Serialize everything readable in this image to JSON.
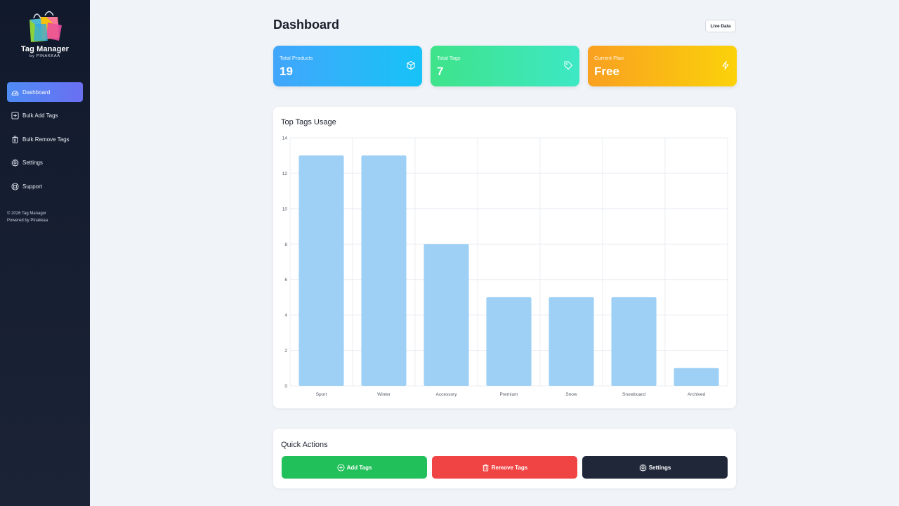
{
  "app": {
    "brand_name": "Tag Manager",
    "brand_by": "by PINAKKAA"
  },
  "sidebar": {
    "items": [
      {
        "label": "Dashboard",
        "icon": "dashboard-icon",
        "active": true
      },
      {
        "label": "Bulk Add Tags",
        "icon": "plus-square-icon",
        "active": false
      },
      {
        "label": "Bulk Remove Tags",
        "icon": "trash-icon",
        "active": false
      },
      {
        "label": "Settings",
        "icon": "gear-icon",
        "active": false
      },
      {
        "label": "Support",
        "icon": "lifebuoy-icon",
        "active": false
      }
    ],
    "footer_line1": "© 2026 Tag Manager",
    "footer_line2": "Powered by Pinakkaa"
  },
  "header": {
    "title": "Dashboard",
    "live_label": "Live Data"
  },
  "stats": [
    {
      "label": "Total Products",
      "value": "19",
      "icon": "cube-icon"
    },
    {
      "label": "Total Tags",
      "value": "7",
      "icon": "tag-icon"
    },
    {
      "label": "Current Plan",
      "value": "Free",
      "icon": "lightning-icon"
    }
  ],
  "chart_card": {
    "title": "Top Tags Usage"
  },
  "chart_data": {
    "type": "bar",
    "categories": [
      "Sport",
      "Winter",
      "Accessory",
      "Premium",
      "Snow",
      "Snowboard",
      "Archived"
    ],
    "values": [
      13,
      13,
      8,
      5,
      5,
      5,
      1
    ],
    "yticks": [
      0,
      2,
      4,
      6,
      8,
      10,
      12,
      14
    ],
    "ylim": [
      0,
      14
    ],
    "title": "Top Tags Usage",
    "xlabel": "",
    "ylabel": "",
    "grid": true,
    "bar_color": "#9ed0f5"
  },
  "quick_actions": {
    "title": "Quick Actions",
    "add_label": "Add Tags",
    "remove_label": "Remove Tags",
    "settings_label": "Settings"
  },
  "colors": {
    "accent": "#5b7ff3",
    "add": "#22c05a",
    "remove": "#f04444",
    "settings": "#1f2739"
  }
}
